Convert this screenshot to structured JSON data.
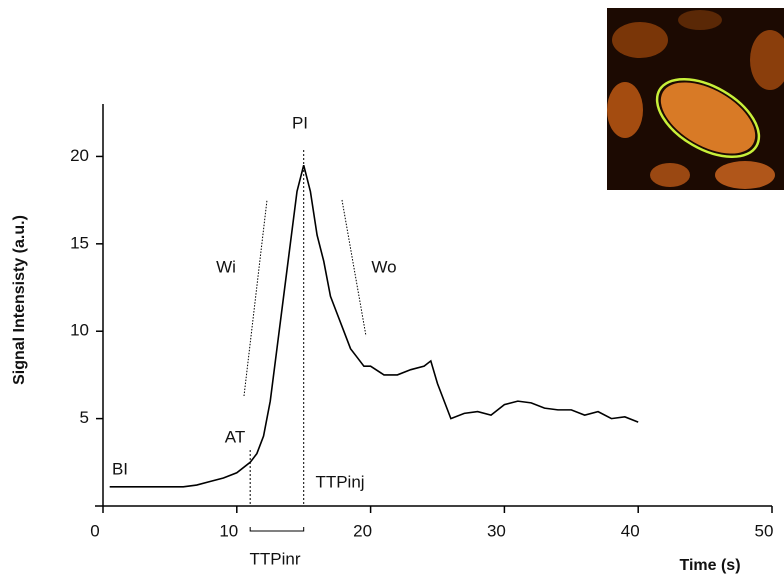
{
  "chart_data": {
    "type": "line",
    "x_label": "Time (s)",
    "y_label": "Signal Intensisty (a.u.)",
    "xlim": [
      0,
      50
    ],
    "ylim": [
      0,
      23
    ],
    "xticks": [
      0,
      10,
      20,
      30,
      40,
      50
    ],
    "yticks": [
      5,
      10,
      15,
      20
    ],
    "vlines": [
      11,
      15
    ],
    "annotations": [
      "PI",
      "Wi",
      "Wo",
      "AT",
      "BI",
      "TTPinj",
      "TTPinr"
    ],
    "series": [
      {
        "color": "#000000",
        "x": [
          0.5,
          2,
          4,
          6,
          7,
          8,
          9,
          10,
          11,
          11.5,
          12,
          12.5,
          13,
          13.5,
          14,
          14.5,
          15,
          15.5,
          16,
          16.5,
          17,
          17.5,
          18,
          18.5,
          19,
          19.5,
          20,
          21,
          22,
          23,
          24,
          24.5,
          25,
          25.5,
          26,
          27,
          28,
          29,
          30,
          31,
          32,
          33,
          34,
          35,
          36,
          37,
          38,
          39,
          40
        ],
        "values": [
          1.1,
          1.1,
          1.1,
          1.1,
          1.2,
          1.4,
          1.6,
          1.9,
          2.5,
          3,
          4,
          6,
          9,
          12,
          15,
          18,
          19.5,
          18,
          15.5,
          14,
          12,
          11,
          10,
          9,
          8.5,
          8,
          8,
          7.5,
          7.5,
          7.8,
          8,
          8.3,
          7,
          6,
          5,
          5.3,
          5.4,
          5.2,
          5.8,
          6,
          5.9,
          5.6,
          5.5,
          5.5,
          5.2,
          5.4,
          5,
          5.1,
          4.8
        ]
      }
    ]
  }
}
